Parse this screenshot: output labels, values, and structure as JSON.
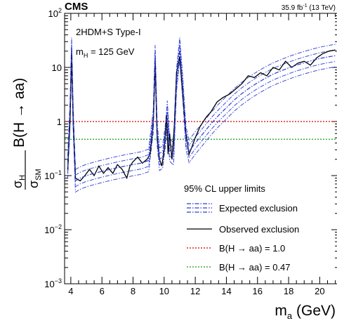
{
  "header": {
    "experiment": "CMS",
    "luminosity_text": "35.9 fb",
    "luminosity_sup": "-1",
    "energy_text": " (13 TeV)"
  },
  "annotations": {
    "model": "2HDM+S Type-I",
    "mass_var": "m",
    "mass_sub": "H",
    "mass_value": " = 125 GeV"
  },
  "legend": {
    "title": "95% CL upper limits",
    "entries": [
      {
        "label": "Expected exclusion",
        "style": "dashdot-band",
        "color": "#2a3ad6"
      },
      {
        "label": "Observed exclusion",
        "style": "solid",
        "color": "#000000"
      },
      {
        "label": "B(H → aa) = 1.0",
        "style": "dotted",
        "color": "#cc0000"
      },
      {
        "label": "B(H → aa) = 0.47",
        "style": "dotted",
        "color": "#11a011"
      }
    ]
  },
  "axes": {
    "ylabel_num": "σ",
    "ylabel_num_sub": "H",
    "ylabel_den": "σ",
    "ylabel_den_sub": "SM",
    "ylabel_rest": "B(H → aa)",
    "xlabel_var": "m",
    "xlabel_sub": "a",
    "xlabel_unit": " (GeV)"
  },
  "chart_data": {
    "type": "line",
    "log_y": true,
    "xlim": [
      3.6,
      21.2
    ],
    "ylim": [
      0.001,
      100
    ],
    "xticks": [
      4,
      6,
      8,
      10,
      12,
      14,
      16,
      18,
      20
    ],
    "yticks": [
      {
        "value": 0.001,
        "base": "10",
        "exp": "−3"
      },
      {
        "value": 0.01,
        "base": "10",
        "exp": "−2"
      },
      {
        "value": 0.1,
        "base": "10",
        "exp": "−1"
      },
      {
        "value": 1,
        "base": "1",
        "exp": ""
      },
      {
        "value": 10,
        "base": "10",
        "exp": ""
      },
      {
        "value": 100,
        "base": "10",
        "exp": "2"
      }
    ],
    "reference_lines": [
      {
        "label": "B(H → aa) = 1.0",
        "y": 1.0,
        "color": "#cc0000"
      },
      {
        "label": "B(H → aa) = 0.47",
        "y": 0.47,
        "color": "#11a011"
      }
    ],
    "series": [
      {
        "name": "Observed exclusion",
        "style": "solid",
        "color": "#000000",
        "points": [
          [
            3.8,
            0.13
          ],
          [
            3.95,
            1.0
          ],
          [
            4.05,
            20.0
          ],
          [
            4.15,
            1.0
          ],
          [
            4.3,
            0.09
          ],
          [
            4.6,
            0.08
          ],
          [
            4.9,
            0.1
          ],
          [
            5.2,
            0.13
          ],
          [
            5.5,
            0.1
          ],
          [
            5.8,
            0.15
          ],
          [
            6.1,
            0.11
          ],
          [
            6.4,
            0.14
          ],
          [
            6.7,
            0.11
          ],
          [
            7.0,
            0.16
          ],
          [
            7.3,
            0.13
          ],
          [
            7.6,
            0.09
          ],
          [
            7.8,
            0.15
          ],
          [
            8.0,
            0.18
          ],
          [
            8.3,
            0.22
          ],
          [
            8.6,
            0.17
          ],
          [
            8.9,
            0.2
          ],
          [
            9.1,
            0.25
          ],
          [
            9.3,
            1.0
          ],
          [
            9.42,
            13.0
          ],
          [
            9.55,
            0.5
          ],
          [
            9.7,
            0.2
          ],
          [
            9.85,
            0.15
          ],
          [
            10.0,
            0.3
          ],
          [
            10.15,
            1.3
          ],
          [
            10.25,
            0.25
          ],
          [
            10.35,
            0.6
          ],
          [
            10.5,
            0.2
          ],
          [
            10.65,
            0.8
          ],
          [
            10.8,
            8.0
          ],
          [
            11.0,
            16.0
          ],
          [
            11.2,
            3.0
          ],
          [
            11.4,
            0.6
          ],
          [
            11.6,
            0.25
          ],
          [
            11.8,
            0.35
          ],
          [
            12.0,
            0.5
          ],
          [
            12.3,
            0.8
          ],
          [
            12.7,
            1.2
          ],
          [
            13.0,
            1.5
          ],
          [
            13.4,
            2.3
          ],
          [
            13.8,
            2.8
          ],
          [
            14.2,
            3.2
          ],
          [
            14.6,
            4.0
          ],
          [
            15.0,
            5.0
          ],
          [
            15.4,
            7.0
          ],
          [
            15.8,
            6.5
          ],
          [
            16.2,
            8.0
          ],
          [
            16.6,
            7.0
          ],
          [
            17.0,
            10.0
          ],
          [
            17.4,
            9.0
          ],
          [
            17.8,
            13.0
          ],
          [
            18.2,
            10.0
          ],
          [
            18.6,
            12.0
          ],
          [
            19.0,
            13.0
          ],
          [
            19.4,
            11.0
          ],
          [
            19.8,
            15.0
          ],
          [
            20.2,
            18.0
          ],
          [
            20.6,
            20.0
          ],
          [
            21.0,
            21.0
          ]
        ]
      },
      {
        "name": "Expected exclusion",
        "style": "dashdot",
        "color": "#2a3ad6",
        "points": [
          [
            3.8,
            0.14
          ],
          [
            3.95,
            1.5
          ],
          [
            4.05,
            22.0
          ],
          [
            4.15,
            1.2
          ],
          [
            4.3,
            0.08
          ],
          [
            4.6,
            0.09
          ],
          [
            5.0,
            0.1
          ],
          [
            5.5,
            0.11
          ],
          [
            6.0,
            0.12
          ],
          [
            6.5,
            0.13
          ],
          [
            7.0,
            0.14
          ],
          [
            7.5,
            0.15
          ],
          [
            8.0,
            0.16
          ],
          [
            8.5,
            0.17
          ],
          [
            9.0,
            0.19
          ],
          [
            9.3,
            1.0
          ],
          [
            9.42,
            16.0
          ],
          [
            9.55,
            0.6
          ],
          [
            9.7,
            0.2
          ],
          [
            9.9,
            0.22
          ],
          [
            10.1,
            0.6
          ],
          [
            10.2,
            1.5
          ],
          [
            10.35,
            0.3
          ],
          [
            10.6,
            0.25
          ],
          [
            10.8,
            6.0
          ],
          [
            11.0,
            22.0
          ],
          [
            11.2,
            4.0
          ],
          [
            11.4,
            0.5
          ],
          [
            11.6,
            0.28
          ],
          [
            12.0,
            0.4
          ],
          [
            12.5,
            0.6
          ],
          [
            13.0,
            0.9
          ],
          [
            13.5,
            1.3
          ],
          [
            14.0,
            1.8
          ],
          [
            14.5,
            2.5
          ],
          [
            15.0,
            3.3
          ],
          [
            15.5,
            4.2
          ],
          [
            16.0,
            5.2
          ],
          [
            16.5,
            6.3
          ],
          [
            17.0,
            7.5
          ],
          [
            17.5,
            8.6
          ],
          [
            18.0,
            9.8
          ],
          [
            18.5,
            11.0
          ],
          [
            19.0,
            12.2
          ],
          [
            19.5,
            13.4
          ],
          [
            20.0,
            14.6
          ],
          [
            20.5,
            15.6
          ],
          [
            21.0,
            16.5
          ]
        ]
      }
    ]
  }
}
